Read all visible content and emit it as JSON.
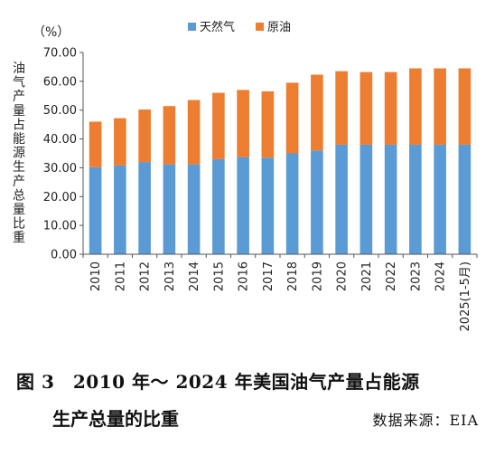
{
  "chart_data": {
    "type": "bar",
    "stacked": true,
    "unit_label": "（%）",
    "ylabel": "油气产量占能源生产总量比重",
    "ylim": [
      0,
      70
    ],
    "yticks": [
      "0.00",
      "10.00",
      "20.00",
      "30.00",
      "40.00",
      "50.00",
      "60.00",
      "70.00"
    ],
    "grid": false,
    "legend_position": "top",
    "categories": [
      "2010",
      "2011",
      "2012",
      "2013",
      "2014",
      "2015",
      "2016",
      "2017",
      "2018",
      "2019",
      "2020",
      "2021",
      "2022",
      "2023",
      "2024",
      "2025(1-5月)"
    ],
    "series": [
      {
        "name": "天然气",
        "color": "#5b9bd5",
        "values": [
          30.2,
          30.8,
          32.0,
          31.2,
          31.2,
          33.0,
          33.7,
          33.5,
          35.0,
          36.0,
          38.0,
          38.0,
          38.0,
          38.0,
          38.0,
          38.0
        ]
      },
      {
        "name": "原油",
        "color": "#ed7d31",
        "values": [
          15.8,
          16.4,
          18.2,
          20.2,
          22.3,
          23.0,
          23.3,
          23.0,
          24.5,
          26.3,
          25.5,
          25.2,
          25.2,
          26.5,
          26.5,
          26.5
        ]
      }
    ]
  },
  "caption": {
    "line1": "图 3　2010 年～ 2024 年美国油气产量占能源",
    "line2": "生产总量的比重",
    "source": "数据来源：EIA"
  }
}
